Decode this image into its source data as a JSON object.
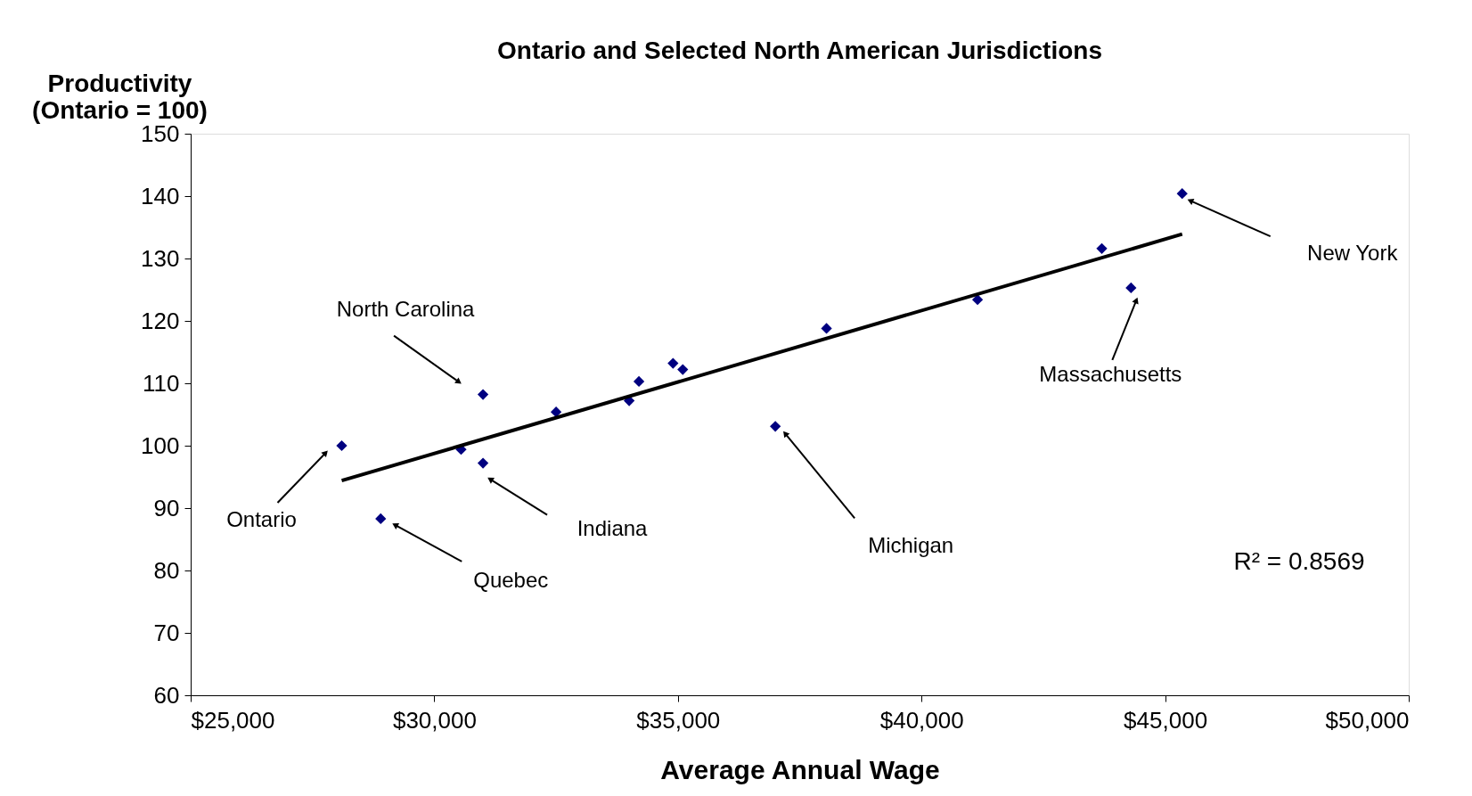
{
  "chart_data": {
    "type": "scatter",
    "title": "Ontario and Selected North American Jurisdictions",
    "xlabel": "Average Annual Wage",
    "ylabel": "Productivity\n(Ontario = 100)",
    "xlim": [
      25000,
      50000
    ],
    "xticks": [
      {
        "value": 25000,
        "label": "$25,000"
      },
      {
        "value": 30000,
        "label": "$30,000"
      },
      {
        "value": 35000,
        "label": "$35,000"
      },
      {
        "value": 40000,
        "label": "$40,000"
      },
      {
        "value": 45000,
        "label": "$45,000"
      },
      {
        "value": 50000,
        "label": "$50,000"
      }
    ],
    "ylim": [
      60,
      150
    ],
    "yticks": [
      60,
      70,
      80,
      90,
      100,
      110,
      120,
      130,
      140,
      150
    ],
    "grid": false,
    "series": [
      {
        "color": "#000080",
        "marker": "diamond",
        "x": [
          28100,
          28900,
          30550,
          31000,
          31000,
          32500,
          34000,
          34200,
          34900,
          35100,
          37000,
          38050,
          41150,
          43700,
          44300,
          45350
        ],
        "values": [
          100,
          88.3,
          99.4,
          97.2,
          108.2,
          105.4,
          107.2,
          110.3,
          113.2,
          112.2,
          103.1,
          118.8,
          123.4,
          131.6,
          125.3,
          140.4
        ]
      },
      {
        "type": "line",
        "color": "#000000",
        "marker": "none",
        "x": [
          28100,
          45350
        ],
        "values": [
          94.4,
          133.9
        ]
      }
    ],
    "annotations": [
      "Ontario",
      "Quebec",
      "Indiana",
      "North Carolina",
      "Michigan",
      "Massachusetts",
      "New York",
      "R² = 0.8569"
    ]
  }
}
